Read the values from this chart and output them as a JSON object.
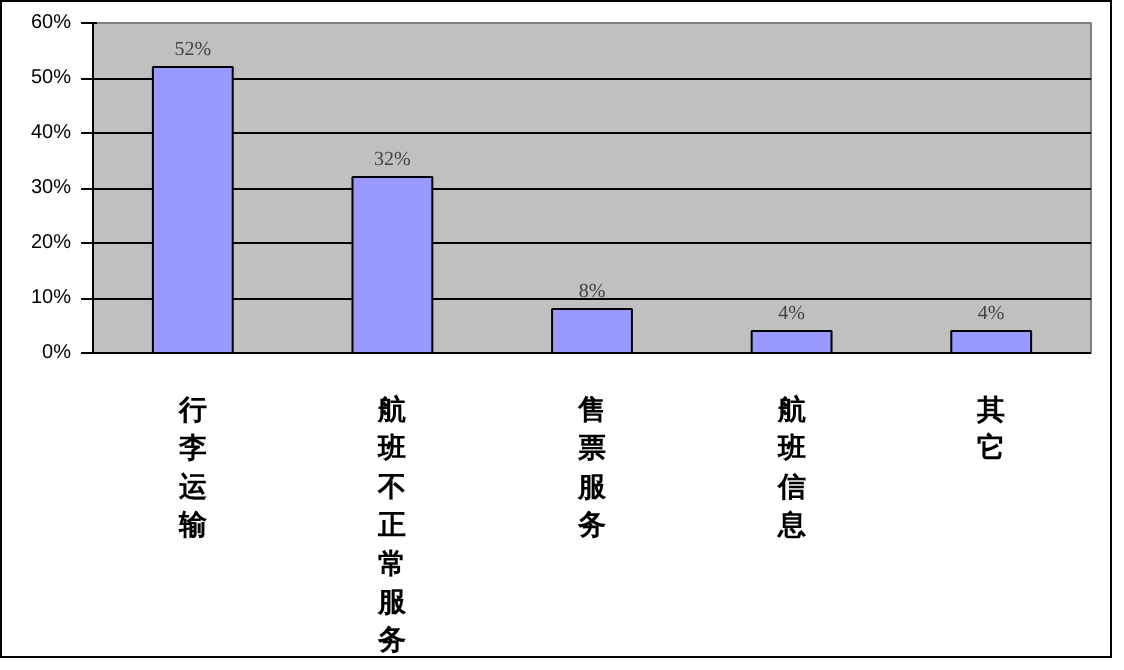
{
  "chart_data": {
    "type": "bar",
    "categories": [
      "行李运输",
      "航班不正常服务",
      "售票服务",
      "航班信息",
      "其它"
    ],
    "values": [
      52,
      32,
      8,
      4,
      4
    ],
    "value_labels": [
      "52%",
      "32%",
      "8%",
      "4%",
      "4%"
    ],
    "color": "#9999ff",
    "ylim": [
      0,
      60
    ],
    "yticks": [
      {
        "value": 0,
        "label": "0%"
      },
      {
        "value": 10,
        "label": "10%"
      },
      {
        "value": 20,
        "label": "20%"
      },
      {
        "value": 30,
        "label": "30%"
      },
      {
        "value": 40,
        "label": "40%"
      },
      {
        "value": 50,
        "label": "50%"
      },
      {
        "value": 60,
        "label": "60%"
      }
    ],
    "grid": "y"
  }
}
